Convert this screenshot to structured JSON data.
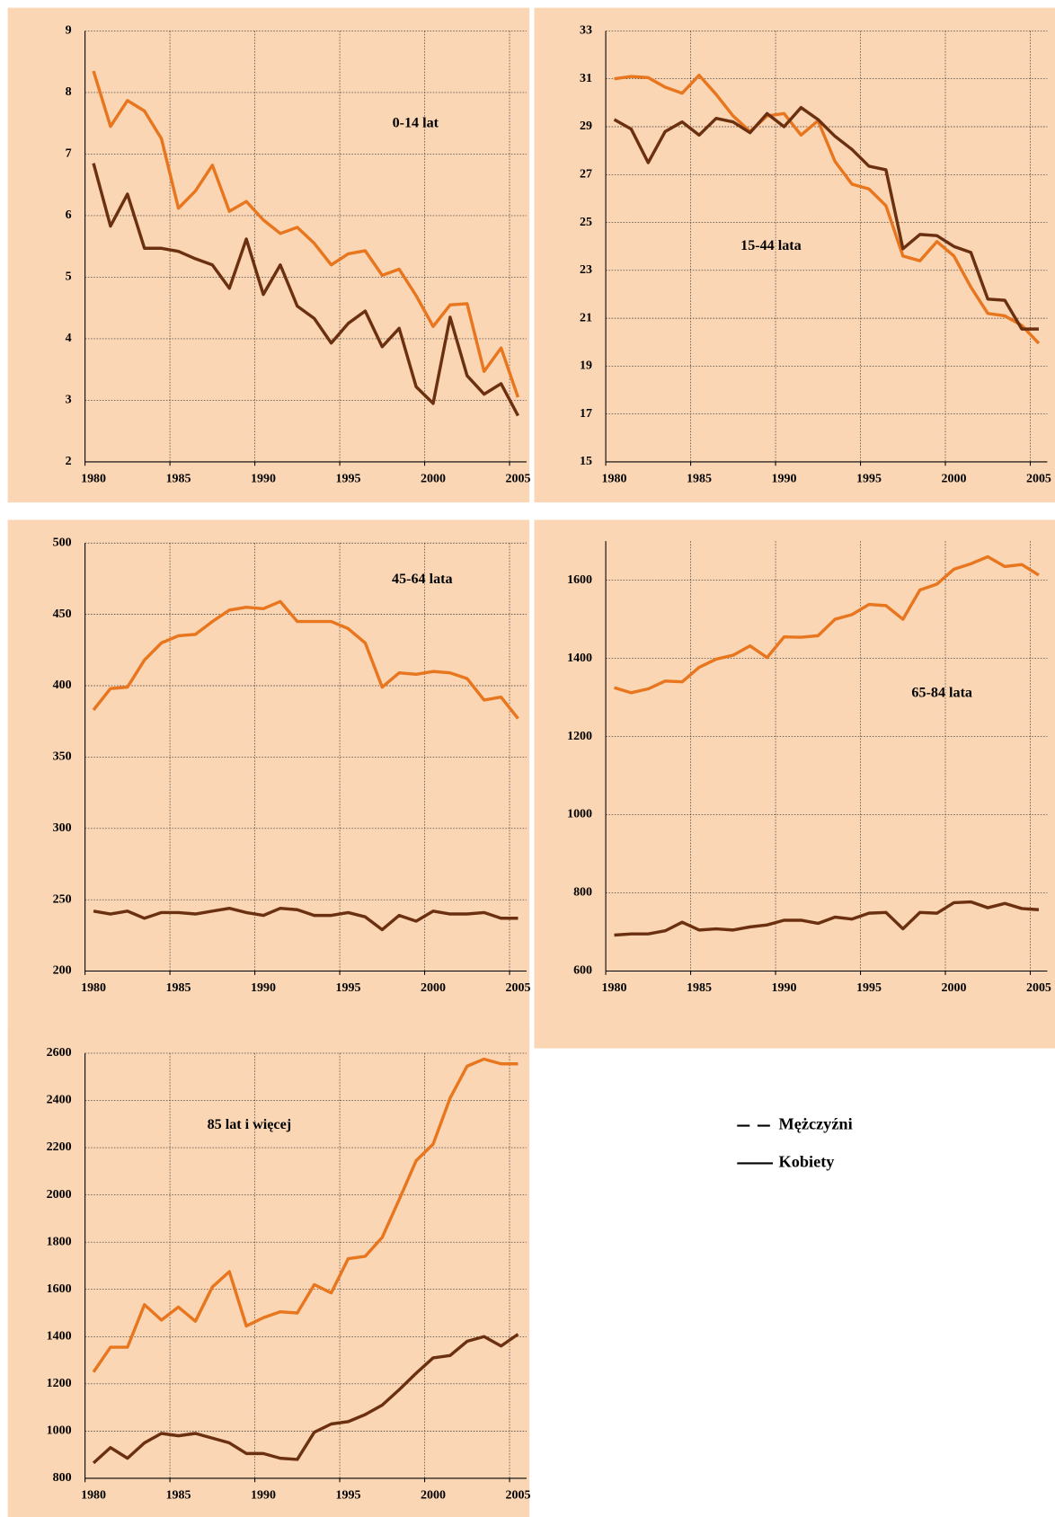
{
  "chart_data": [
    {
      "type": "line",
      "title": "0-14 lat",
      "x": [
        1980,
        1981,
        1982,
        1983,
        1984,
        1985,
        1986,
        1987,
        1988,
        1989,
        1990,
        1991,
        1992,
        1993,
        1994,
        1995,
        1996,
        1997,
        1998,
        1999,
        2000,
        2001,
        2002,
        2003,
        2004,
        2005
      ],
      "xlim": [
        1979.5,
        2005.5
      ],
      "xticks": [
        1980,
        1985,
        1990,
        1995,
        2000,
        2005
      ],
      "ylim": [
        2,
        9
      ],
      "yticks": [
        2,
        3,
        4,
        5,
        6,
        7,
        8,
        9
      ],
      "grid": true,
      "series": [
        {
          "color": "#e8761e",
          "values": [
            8.35,
            7.45,
            7.87,
            7.7,
            7.25,
            6.12,
            6.4,
            6.82,
            6.07,
            6.23,
            5.93,
            5.71,
            5.81,
            5.55,
            5.2,
            5.38,
            5.43,
            5.03,
            5.13,
            4.7,
            4.2,
            4.55,
            4.57,
            3.47,
            3.85,
            3.05
          ]
        },
        {
          "color": "#6b3010",
          "values": [
            6.85,
            5.83,
            6.35,
            5.47,
            5.47,
            5.42,
            5.3,
            5.2,
            4.82,
            5.62,
            4.72,
            5.2,
            4.53,
            4.33,
            3.93,
            4.25,
            4.45,
            3.87,
            4.17,
            3.22,
            2.95,
            4.35,
            3.4,
            3.1,
            3.27,
            2.75
          ]
        }
      ]
    },
    {
      "type": "line",
      "title": "15-44 lata",
      "x": [
        1980,
        1981,
        1982,
        1983,
        1984,
        1985,
        1986,
        1987,
        1988,
        1989,
        1990,
        1991,
        1992,
        1993,
        1994,
        1995,
        1996,
        1997,
        1998,
        1999,
        2000,
        2001,
        2002,
        2003,
        2004,
        2005
      ],
      "xlim": [
        1979.5,
        2005.5
      ],
      "xticks": [
        1980,
        1985,
        1990,
        1995,
        2000,
        2005
      ],
      "ylim": [
        15,
        33
      ],
      "yticks": [
        15,
        17,
        19,
        21,
        23,
        25,
        27,
        29,
        31,
        33
      ],
      "grid": true,
      "series": [
        {
          "color": "#e8761e",
          "values": [
            31.0,
            31.1,
            31.05,
            30.65,
            30.4,
            31.15,
            30.35,
            29.45,
            28.8,
            29.45,
            29.55,
            28.65,
            29.25,
            27.55,
            26.6,
            26.4,
            25.7,
            23.6,
            23.4,
            24.2,
            23.6,
            22.3,
            21.2,
            21.1,
            20.7,
            19.95
          ]
        },
        {
          "color": "#6b3010",
          "values": [
            29.3,
            28.9,
            27.5,
            28.8,
            29.2,
            28.65,
            29.35,
            29.2,
            28.75,
            29.55,
            29.0,
            29.8,
            29.3,
            28.6,
            28.05,
            27.35,
            27.2,
            23.9,
            24.5,
            24.45,
            24.0,
            23.75,
            21.8,
            21.75,
            20.55,
            20.55
          ]
        }
      ]
    },
    {
      "type": "line",
      "title": "45-64 lata",
      "x": [
        1980,
        1981,
        1982,
        1983,
        1984,
        1985,
        1986,
        1987,
        1988,
        1989,
        1990,
        1991,
        1992,
        1993,
        1994,
        1995,
        1996,
        1997,
        1998,
        1999,
        2000,
        2001,
        2002,
        2003,
        2004,
        2005
      ],
      "xlim": [
        1979.5,
        2005.5
      ],
      "xticks": [
        1980,
        1985,
        1990,
        1995,
        2000,
        2005
      ],
      "ylim": [
        200,
        500
      ],
      "yticks": [
        200,
        250,
        300,
        350,
        400,
        450,
        500
      ],
      "grid": true,
      "series": [
        {
          "color": "#e8761e",
          "values": [
            383,
            398,
            399,
            418,
            430,
            435,
            436,
            445,
            453,
            455,
            454,
            459,
            445,
            445,
            445,
            440,
            430,
            399,
            409,
            408,
            410,
            409,
            405,
            390,
            392,
            377
          ]
        },
        {
          "color": "#6b3010",
          "values": [
            242,
            240,
            242,
            237,
            241,
            241,
            240,
            242,
            244,
            241,
            239,
            244,
            243,
            239,
            239,
            241,
            238,
            229,
            239,
            235,
            242,
            240,
            240,
            241,
            237,
            237
          ]
        }
      ]
    },
    {
      "type": "line",
      "title": "65-84 lata",
      "x": [
        1980,
        1981,
        1982,
        1983,
        1984,
        1985,
        1986,
        1987,
        1988,
        1989,
        1990,
        1991,
        1992,
        1993,
        1994,
        1995,
        1996,
        1997,
        1998,
        1999,
        2000,
        2001,
        2002,
        2003,
        2004,
        2005
      ],
      "xlim": [
        1979.5,
        2005.5
      ],
      "xticks": [
        1980,
        1985,
        1990,
        1995,
        2000,
        2005
      ],
      "ylim": [
        600,
        1700
      ],
      "yticks": [
        600,
        800,
        1000,
        1200,
        1400,
        1600
      ],
      "grid": true,
      "series": [
        {
          "color": "#e8761e",
          "values": [
            1325,
            1312,
            1322,
            1342,
            1340,
            1377,
            1398,
            1408,
            1432,
            1402,
            1455,
            1454,
            1458,
            1500,
            1512,
            1538,
            1535,
            1500,
            1575,
            1590,
            1628,
            1642,
            1660,
            1635,
            1640,
            1613
          ]
        },
        {
          "color": "#6b3010",
          "values": [
            692,
            695,
            695,
            703,
            725,
            705,
            708,
            705,
            713,
            718,
            730,
            730,
            722,
            738,
            733,
            748,
            750,
            708,
            750,
            748,
            775,
            777,
            762,
            773,
            760,
            757
          ]
        }
      ]
    },
    {
      "type": "line",
      "title": "85 lat i więcej",
      "x": [
        1980,
        1981,
        1982,
        1983,
        1984,
        1985,
        1986,
        1987,
        1988,
        1989,
        1990,
        1991,
        1992,
        1993,
        1994,
        1995,
        1996,
        1997,
        1998,
        1999,
        2000,
        2001,
        2002,
        2003,
        2004,
        2005
      ],
      "xlim": [
        1979.5,
        2005.5
      ],
      "xticks": [
        1980,
        1985,
        1990,
        1995,
        2000,
        2005
      ],
      "ylim": [
        800,
        2600
      ],
      "yticks": [
        800,
        1000,
        1200,
        1400,
        1600,
        1800,
        2000,
        2200,
        2400,
        2600
      ],
      "grid": true,
      "series": [
        {
          "color": "#e8761e",
          "values": [
            1250,
            1355,
            1355,
            1535,
            1470,
            1525,
            1465,
            1610,
            1675,
            1445,
            1480,
            1505,
            1500,
            1620,
            1585,
            1730,
            1740,
            1820,
            1980,
            2145,
            2215,
            2410,
            2545,
            2575,
            2555,
            2555
          ]
        },
        {
          "color": "#6b3010",
          "values": [
            865,
            930,
            885,
            950,
            990,
            980,
            990,
            970,
            950,
            905,
            905,
            885,
            880,
            995,
            1030,
            1040,
            1070,
            1110,
            1175,
            1245,
            1310,
            1320,
            1380,
            1400,
            1360,
            1410
          ]
        }
      ]
    }
  ],
  "legend": {
    "color": "#000000",
    "entries": [
      {
        "name": "Mężczyźni",
        "style": "dashed"
      },
      {
        "name": "Kobiety",
        "style": "solid"
      }
    ]
  }
}
